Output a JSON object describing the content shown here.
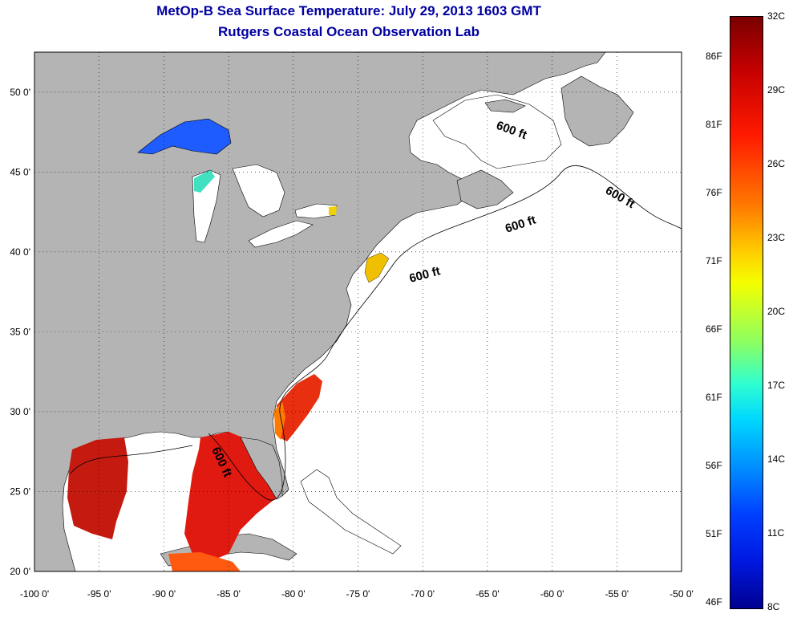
{
  "title": {
    "line1": "MetOp-B Sea Surface Temperature:  July 29, 2013 1603 GMT",
    "line2": "Rutgers Coastal Ocean Observation Lab"
  },
  "map": {
    "lon_range": [
      -100,
      -50
    ],
    "lat_range": [
      20,
      52.5
    ],
    "x_ticks": [
      "-100 0'",
      "-95 0'",
      "-90 0'",
      "-85 0'",
      "-80 0'",
      "-75 0'",
      "-70 0'",
      "-65 0'",
      "-60 0'",
      "-55 0'",
      "-50 0'"
    ],
    "y_ticks": [
      "20 0'",
      "25 0'",
      "30 0'",
      "35 0'",
      "40 0'",
      "45 0'",
      "50 0'"
    ],
    "grid": "dotted",
    "land_color": "#b4b4b4",
    "ocean_no_data_color": "#ffffff",
    "contour_labels": [
      "600 ft",
      "600 ft",
      "600 ft",
      "600 ft",
      "600 ft"
    ]
  },
  "colorbar": {
    "fahrenheit": [
      "86F",
      "81F",
      "76F",
      "71F",
      "66F",
      "61F",
      "56F",
      "51F",
      "46F"
    ],
    "celsius": [
      "32C",
      "29C",
      "26C",
      "23C",
      "20C",
      "17C",
      "14C",
      "11C",
      "8C"
    ],
    "colors": {
      "hot": "#7a0000",
      "warm": "#ff1a00",
      "mid": "#ffd000",
      "cool": "#00d8ff",
      "cold": "#000090"
    }
  }
}
